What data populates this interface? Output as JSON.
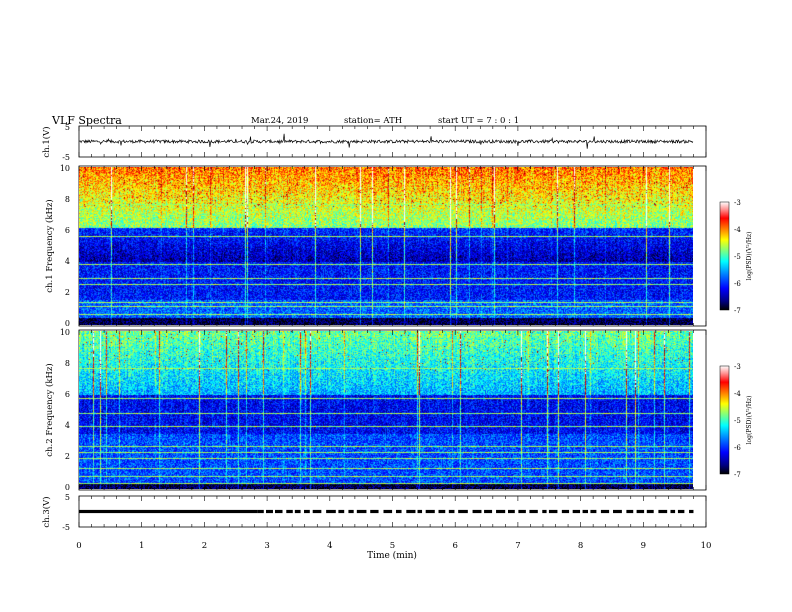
{
  "header": {
    "title": "VLF Spectra",
    "date": "Mar.24, 2019",
    "station": "station= ATH",
    "start_ut": "start UT = 7 : 0 : 1"
  },
  "colors": {
    "colormap": [
      "#000000",
      "#00007f",
      "#0000ff",
      "#007fff",
      "#00ffff",
      "#7fff7f",
      "#ffff00",
      "#ff7f00",
      "#ff0000",
      "#7f0000",
      "#ffffff"
    ]
  },
  "chart_data": [
    {
      "type": "line",
      "name": "ch1-waveform",
      "ylabel": "ch.1(V)",
      "ylim": [
        -5,
        5
      ],
      "yticks": [
        "5",
        "-5"
      ],
      "x_range_min": [
        0,
        9.8
      ],
      "baseline": 0,
      "noise_amplitude_v": 1
    },
    {
      "type": "heatmap",
      "name": "ch1-spectrogram",
      "ylabel": "ch.1 Frequency (kHz)",
      "ylim": [
        0,
        10
      ],
      "yticks": [
        "0",
        "2",
        "4",
        "6",
        "8",
        "10"
      ],
      "x_range_min": [
        0,
        9.8
      ],
      "colorbar": {
        "label": "log(PSD)(V²/Hz)",
        "range": [
          -7,
          -3
        ],
        "ticks": [
          "-3",
          "-4",
          "-5",
          "-6",
          "-7"
        ]
      }
    },
    {
      "type": "heatmap",
      "name": "ch2-spectrogram",
      "ylabel": "ch.2 Frequency (kHz)",
      "ylim": [
        0,
        10
      ],
      "yticks": [
        "0",
        "2",
        "4",
        "6",
        "8",
        "10"
      ],
      "x_range_min": [
        0,
        9.8
      ],
      "colorbar": {
        "label": "log(PSD)(V²/Hz)",
        "range": [
          -7,
          -3
        ],
        "ticks": [
          "-3",
          "-4",
          "-5",
          "-6",
          "-7"
        ]
      }
    },
    {
      "type": "line",
      "name": "ch3-waveform",
      "ylabel": "ch.3(V)",
      "ylim": [
        -5,
        5
      ],
      "yticks": [
        "5",
        "-5"
      ],
      "x_range_min": [
        0,
        9.8
      ],
      "level_v": 0
    }
  ],
  "x_axis": {
    "label": "Time (min)",
    "xlim": [
      0,
      10
    ],
    "ticks": [
      "0",
      "1",
      "2",
      "3",
      "4",
      "5",
      "6",
      "7",
      "8",
      "9",
      "10"
    ]
  }
}
